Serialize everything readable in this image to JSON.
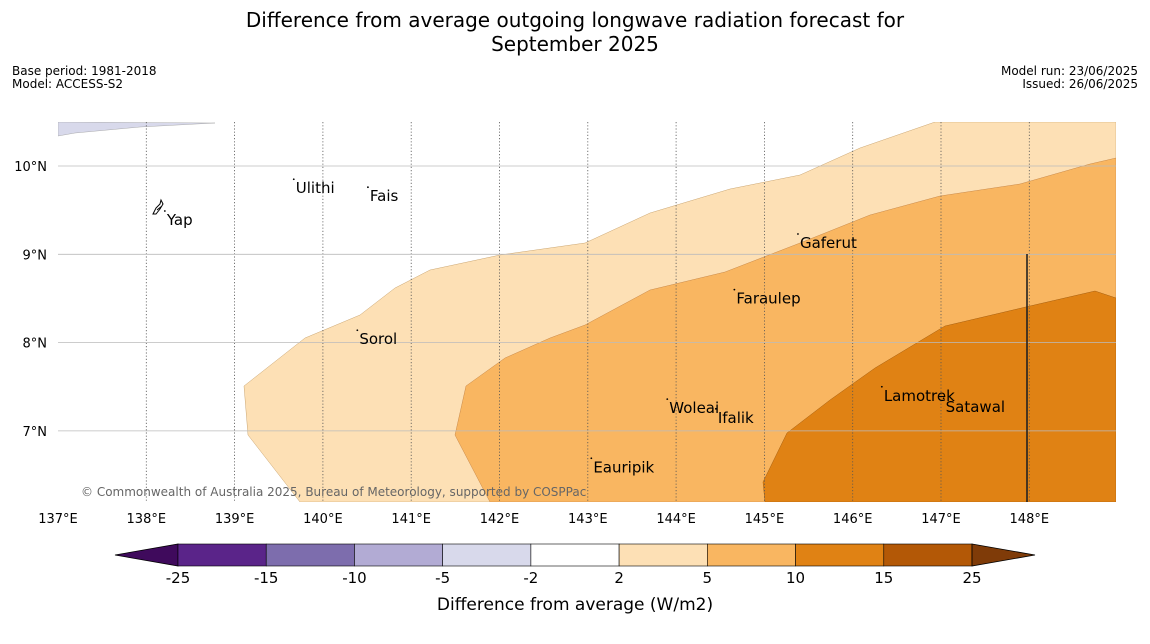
{
  "title_line1": "Difference from average outgoing longwave radiation forecast for",
  "title_line2": "September 2025",
  "meta_left": {
    "base_period": "Base period: 1981-2018",
    "model": "Model: ACCESS-S2"
  },
  "meta_right": {
    "model_run": "Model run: 23/06/2025",
    "issued": "Issued: 26/06/2025"
  },
  "copyright": "© Commonwealth of Australia 2025, Bureau of Meteorology, supported by COSPPac",
  "lat_labels": [
    "10°N",
    "9°N",
    "8°N",
    "7°N"
  ],
  "lon_labels": [
    "137°E",
    "138°E",
    "139°E",
    "140°E",
    "141°E",
    "142°E",
    "143°E",
    "144°E",
    "145°E",
    "146°E",
    "147°E",
    "148°E"
  ],
  "places": [
    {
      "name": "Yap",
      "lon": 138.21,
      "lat": 9.49
    },
    {
      "name": "Ulithi",
      "lon": 139.67,
      "lat": 9.85
    },
    {
      "name": "Fais",
      "lon": 140.51,
      "lat": 9.76
    },
    {
      "name": "Gaferut",
      "lon": 145.38,
      "lat": 9.23
    },
    {
      "name": "Faraulep",
      "lon": 144.66,
      "lat": 8.6
    },
    {
      "name": "Sorol",
      "lon": 140.39,
      "lat": 8.14
    },
    {
      "name": "Woleai",
      "lon": 143.9,
      "lat": 7.36
    },
    {
      "name": "Ifalik",
      "lon": 144.45,
      "lat": 7.25
    },
    {
      "name": "Lamotrek",
      "lon": 146.33,
      "lat": 7.5
    },
    {
      "name": "Satawal",
      "lon": 147.03,
      "lat": 7.37
    },
    {
      "name": "Eauripik",
      "lon": 143.04,
      "lat": 6.69
    }
  ],
  "colorbar": {
    "title": "Difference from average (W/m2)",
    "labels": [
      "-25",
      "-15",
      "-10",
      "-5",
      "-2",
      "2",
      "5",
      "10",
      "15",
      "25"
    ],
    "colors": [
      "#3f0a5c",
      "#5a2489",
      "#7d6dad",
      "#b2abd4",
      "#d8d9eb",
      "#ffffff",
      "#fde0b5",
      "#f9b661",
      "#e08214",
      "#b35806",
      "#7f3b08"
    ]
  }
}
